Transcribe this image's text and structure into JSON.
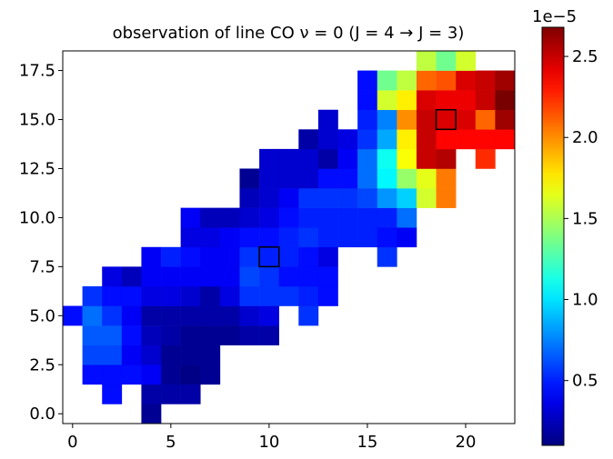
{
  "chart_data": {
    "type": "heatmap",
    "title": "observation of line CO ν = 0 (J = 4 → J = 3)",
    "xlim": [
      -0.5,
      22.5
    ],
    "ylim": [
      -0.5,
      18.5
    ],
    "xticks": [
      0,
      5,
      10,
      15,
      20
    ],
    "yticks": [
      {
        "value": 0,
        "label": "0.0"
      },
      2.5,
      {
        "value": 5,
        "label": "5.0"
      },
      7.5,
      {
        "value": 10,
        "label": "10.0"
      },
      12.5,
      {
        "value": 15,
        "label": "15.0"
      },
      17.5
    ],
    "colormap": "jet",
    "colorbar": {
      "lim": [
        0.1,
        2.68
      ],
      "ticks": [
        0.5,
        {
          "value": 1,
          "label": "1.0"
        },
        1.5,
        {
          "value": 2,
          "label": "2.0"
        },
        2.5
      ],
      "offset_label": "1e−5"
    },
    "z": [
      [
        null,
        null,
        null,
        null,
        0.15,
        null,
        null,
        null,
        null,
        null,
        null,
        null,
        null,
        null,
        null,
        null,
        null,
        null,
        null,
        null,
        null,
        null,
        null
      ],
      [
        null,
        null,
        0.45,
        null,
        0.2,
        0.2,
        0.2,
        null,
        null,
        null,
        null,
        null,
        null,
        null,
        null,
        null,
        null,
        null,
        null,
        null,
        null,
        null,
        null
      ],
      [
        null,
        0.45,
        0.45,
        0.45,
        0.4,
        0.15,
        0.12,
        0.15,
        null,
        null,
        null,
        null,
        null,
        null,
        null,
        null,
        null,
        null,
        null,
        null,
        null,
        null,
        null
      ],
      [
        null,
        0.6,
        0.6,
        0.4,
        0.3,
        0.15,
        0.15,
        0.15,
        null,
        null,
        null,
        null,
        null,
        null,
        null,
        null,
        null,
        null,
        null,
        null,
        null,
        null,
        null
      ],
      [
        null,
        0.65,
        0.65,
        0.45,
        0.25,
        0.2,
        0.15,
        0.15,
        0.15,
        0.2,
        0.2,
        null,
        null,
        null,
        null,
        null,
        null,
        null,
        null,
        null,
        null,
        null,
        null
      ],
      [
        0.45,
        0.7,
        0.55,
        0.4,
        0.2,
        0.2,
        0.2,
        0.2,
        0.2,
        0.3,
        0.35,
        null,
        0.55,
        null,
        null,
        null,
        null,
        null,
        null,
        null,
        null,
        null,
        null
      ],
      [
        null,
        0.55,
        0.45,
        0.45,
        0.35,
        0.35,
        0.3,
        0.2,
        0.35,
        0.55,
        0.55,
        0.55,
        0.5,
        0.45,
        null,
        null,
        null,
        null,
        null,
        null,
        null,
        null,
        null
      ],
      [
        null,
        null,
        0.35,
        0.25,
        0.4,
        0.4,
        0.4,
        0.4,
        0.4,
        0.6,
        0.55,
        0.45,
        0.45,
        0.45,
        null,
        null,
        null,
        null,
        null,
        null,
        null,
        null,
        null
      ],
      [
        null,
        null,
        null,
        null,
        0.4,
        0.5,
        0.45,
        0.4,
        0.4,
        0.55,
        0.5,
        0.5,
        0.45,
        0.35,
        null,
        null,
        0.55,
        null,
        null,
        null,
        null,
        null,
        null
      ],
      [
        null,
        null,
        null,
        null,
        null,
        null,
        0.35,
        0.35,
        0.4,
        0.45,
        0.45,
        0.5,
        0.55,
        0.5,
        0.5,
        0.5,
        0.45,
        0.4,
        null,
        null,
        null,
        null,
        null
      ],
      [
        null,
        null,
        null,
        null,
        null,
        null,
        0.4,
        0.25,
        0.25,
        0.3,
        0.35,
        0.45,
        0.5,
        0.5,
        0.5,
        0.5,
        0.5,
        0.7,
        null,
        null,
        null,
        null,
        null
      ],
      [
        null,
        null,
        null,
        null,
        null,
        null,
        null,
        null,
        null,
        0.25,
        0.3,
        0.4,
        0.55,
        0.55,
        0.55,
        0.6,
        0.8,
        0.95,
        1.6,
        2.05,
        null,
        null,
        null
      ],
      [
        null,
        null,
        null,
        null,
        null,
        null,
        null,
        null,
        null,
        0.15,
        0.3,
        0.3,
        0.3,
        0.45,
        0.45,
        0.7,
        1.05,
        1.45,
        1.65,
        2.05,
        null,
        null,
        null
      ],
      [
        null,
        null,
        null,
        null,
        null,
        null,
        null,
        null,
        null,
        null,
        0.3,
        0.3,
        0.3,
        0.2,
        0.4,
        0.7,
        1.1,
        1.7,
        2.5,
        2.55,
        null,
        2.25,
        null
      ],
      [
        null,
        null,
        null,
        null,
        null,
        null,
        null,
        null,
        null,
        null,
        null,
        null,
        0.2,
        0.3,
        0.35,
        0.55,
        0.85,
        1.75,
        2.5,
        2.35,
        2.35,
        2.35,
        2.35
      ],
      [
        null,
        null,
        null,
        null,
        null,
        null,
        null,
        null,
        null,
        null,
        null,
        null,
        null,
        0.3,
        null,
        0.5,
        0.75,
        2.0,
        2.5,
        2.45,
        2.45,
        2.1,
        2.6
      ],
      [
        null,
        null,
        null,
        null,
        null,
        null,
        null,
        null,
        null,
        null,
        null,
        null,
        null,
        null,
        null,
        0.45,
        1.6,
        1.75,
        2.45,
        2.4,
        2.4,
        2.5,
        2.7
      ],
      [
        null,
        null,
        null,
        null,
        null,
        null,
        null,
        null,
        null,
        null,
        null,
        null,
        null,
        null,
        null,
        0.45,
        1.35,
        1.55,
        2.1,
        2.15,
        2.45,
        2.5,
        2.6
      ],
      [
        null,
        null,
        null,
        null,
        null,
        null,
        null,
        null,
        null,
        null,
        null,
        null,
        null,
        null,
        null,
        null,
        null,
        null,
        1.55,
        1.35,
        1.6,
        null,
        null
      ]
    ],
    "highlights": [
      {
        "x": 10,
        "y": 8
      },
      {
        "x": 19,
        "y": 15
      }
    ]
  }
}
